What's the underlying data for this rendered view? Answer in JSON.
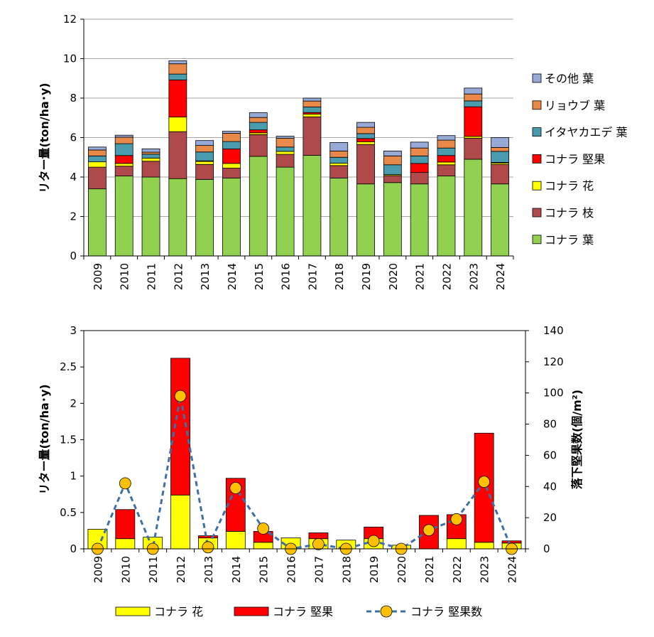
{
  "colors": {
    "leaf": "#92d050",
    "branch": "#b04a4a",
    "flower": "#ffff00",
    "acorn": "#ff0000",
    "maple": "#4a9bae",
    "ryobu": "#e8894a",
    "other": "#97a9d6",
    "line": "#3e6fa6",
    "marker": "#ffc000",
    "grid": "#a6a6a6"
  },
  "chart_data": [
    {
      "type": "bar",
      "stacked": true,
      "categories": [
        "2009",
        "2010",
        "2011",
        "2012",
        "2013",
        "2014",
        "2015",
        "2016",
        "2017",
        "2018",
        "2019",
        "2020",
        "2021",
        "2022",
        "2023",
        "2024"
      ],
      "ylabel": "リター量(ton/ha･y)",
      "ylim": [
        0,
        12
      ],
      "yticks": [
        "0",
        "2",
        "4",
        "6",
        "8",
        "10",
        "12"
      ],
      "grid": true,
      "legend_position": "right",
      "series": [
        {
          "name": "コナラ 葉",
          "color_key": "leaf",
          "values": [
            3.4,
            4.05,
            4.0,
            3.92,
            3.88,
            3.95,
            5.05,
            4.5,
            5.1,
            3.95,
            3.65,
            3.72,
            3.65,
            4.05,
            4.9,
            3.65
          ]
        },
        {
          "name": "コナラ 枝",
          "color_key": "branch",
          "values": [
            1.1,
            0.5,
            0.8,
            2.38,
            0.76,
            0.5,
            1.1,
            0.65,
            1.95,
            0.63,
            2.0,
            0.35,
            0.58,
            0.57,
            1.07,
            0.98
          ]
        },
        {
          "name": "コナラ 花",
          "color_key": "flower",
          "values": [
            0.27,
            0.14,
            0.16,
            0.74,
            0.15,
            0.24,
            0.09,
            0.15,
            0.14,
            0.12,
            0.14,
            0.05,
            0.0,
            0.14,
            0.09,
            0.08
          ]
        },
        {
          "name": "コナラ 堅果",
          "color_key": "acorn",
          "values": [
            0.0,
            0.4,
            0.0,
            1.88,
            0.03,
            0.73,
            0.15,
            0.0,
            0.08,
            0.0,
            0.16,
            0.0,
            0.46,
            0.33,
            1.5,
            0.03
          ]
        },
        {
          "name": "イタヤカエデ 葉",
          "color_key": "maple",
          "values": [
            0.3,
            0.6,
            0.2,
            0.3,
            0.45,
            0.38,
            0.38,
            0.22,
            0.28,
            0.3,
            0.25,
            0.5,
            0.38,
            0.38,
            0.3,
            0.56
          ]
        },
        {
          "name": "リョウブ 葉",
          "color_key": "ryobu",
          "values": [
            0.3,
            0.33,
            0.1,
            0.52,
            0.33,
            0.42,
            0.25,
            0.45,
            0.3,
            0.32,
            0.32,
            0.45,
            0.4,
            0.4,
            0.35,
            0.2
          ]
        },
        {
          "name": "その他 葉",
          "color_key": "other",
          "values": [
            0.15,
            0.1,
            0.17,
            0.15,
            0.25,
            0.1,
            0.24,
            0.1,
            0.15,
            0.43,
            0.25,
            0.25,
            0.3,
            0.23,
            0.3,
            0.5
          ]
        }
      ]
    },
    {
      "type": "bar",
      "stacked": true,
      "categories": [
        "2009",
        "2010",
        "2011",
        "2012",
        "2013",
        "2014",
        "2015",
        "2016",
        "2017",
        "2018",
        "2019",
        "2020",
        "2021",
        "2022",
        "2023",
        "2024"
      ],
      "ylabel": "リター量(ton/ha･y)",
      "y2label": "落下堅果数(個/m²)",
      "ylim": [
        0,
        3
      ],
      "yticks": [
        "0",
        "0.5",
        "1",
        "1.5",
        "2",
        "2.5",
        "3"
      ],
      "y2lim": [
        0,
        140
      ],
      "y2ticks": [
        "0",
        "20",
        "40",
        "60",
        "80",
        "100",
        "120",
        "140"
      ],
      "grid": false,
      "legend_position": "bottom",
      "series": [
        {
          "name": "コナラ 花",
          "color_key": "flower",
          "values": [
            0.27,
            0.14,
            0.16,
            0.74,
            0.15,
            0.24,
            0.09,
            0.15,
            0.14,
            0.12,
            0.14,
            0.05,
            0.0,
            0.14,
            0.09,
            0.08
          ]
        },
        {
          "name": "コナラ 堅果",
          "color_key": "acorn",
          "values": [
            0.0,
            0.4,
            0.0,
            1.88,
            0.03,
            0.73,
            0.15,
            0.0,
            0.08,
            0.0,
            0.16,
            0.0,
            0.46,
            0.33,
            1.5,
            0.03
          ]
        }
      ],
      "line_series": {
        "name": "コナラ 堅果数",
        "axis": "right",
        "style": "dashed-with-circle-markers",
        "values": [
          0,
          42,
          0,
          98,
          1,
          39,
          13,
          0,
          3,
          0,
          5,
          0,
          12,
          19,
          43,
          0
        ]
      }
    }
  ]
}
